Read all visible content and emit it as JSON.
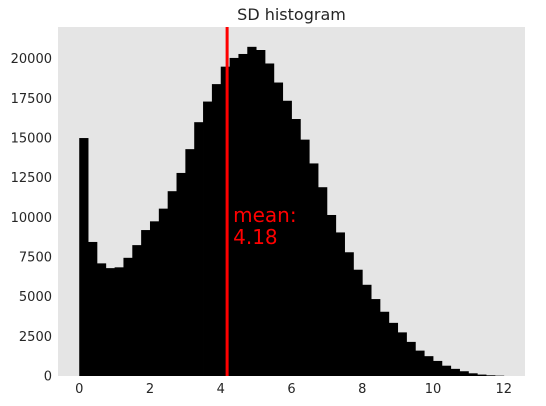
{
  "chart_data": {
    "type": "bar",
    "title": "SD histogram",
    "xlabel": "",
    "ylabel": "",
    "xlim": [
      -0.6,
      12.6
    ],
    "ylim": [
      0,
      22000
    ],
    "x_ticks": [
      0,
      2,
      4,
      6,
      8,
      10,
      12
    ],
    "y_ticks": [
      0,
      2500,
      5000,
      7500,
      10000,
      12500,
      15000,
      17500,
      20000
    ],
    "bin_width": 0.25,
    "bin_start": 0,
    "values": [
      15000,
      8450,
      7100,
      6800,
      6850,
      7450,
      8250,
      9200,
      9750,
      10550,
      11650,
      12800,
      14300,
      16000,
      17300,
      18400,
      19500,
      20050,
      20300,
      20750,
      20550,
      19700,
      18500,
      17350,
      16200,
      14900,
      13400,
      11900,
      10150,
      9050,
      7800,
      6700,
      5750,
      4850,
      4050,
      3350,
      2750,
      2150,
      1600,
      1250,
      950,
      650,
      450,
      300,
      170,
      90,
      45,
      20
    ],
    "mean": 4.18,
    "annotation": {
      "line1": "mean:",
      "line2": "4.18",
      "color": "#ff0000"
    },
    "colors": {
      "bars": "#000000",
      "plot_background": "#e5e5e5",
      "mean_line": "#ff0000"
    },
    "grid": false,
    "legend": "none"
  }
}
